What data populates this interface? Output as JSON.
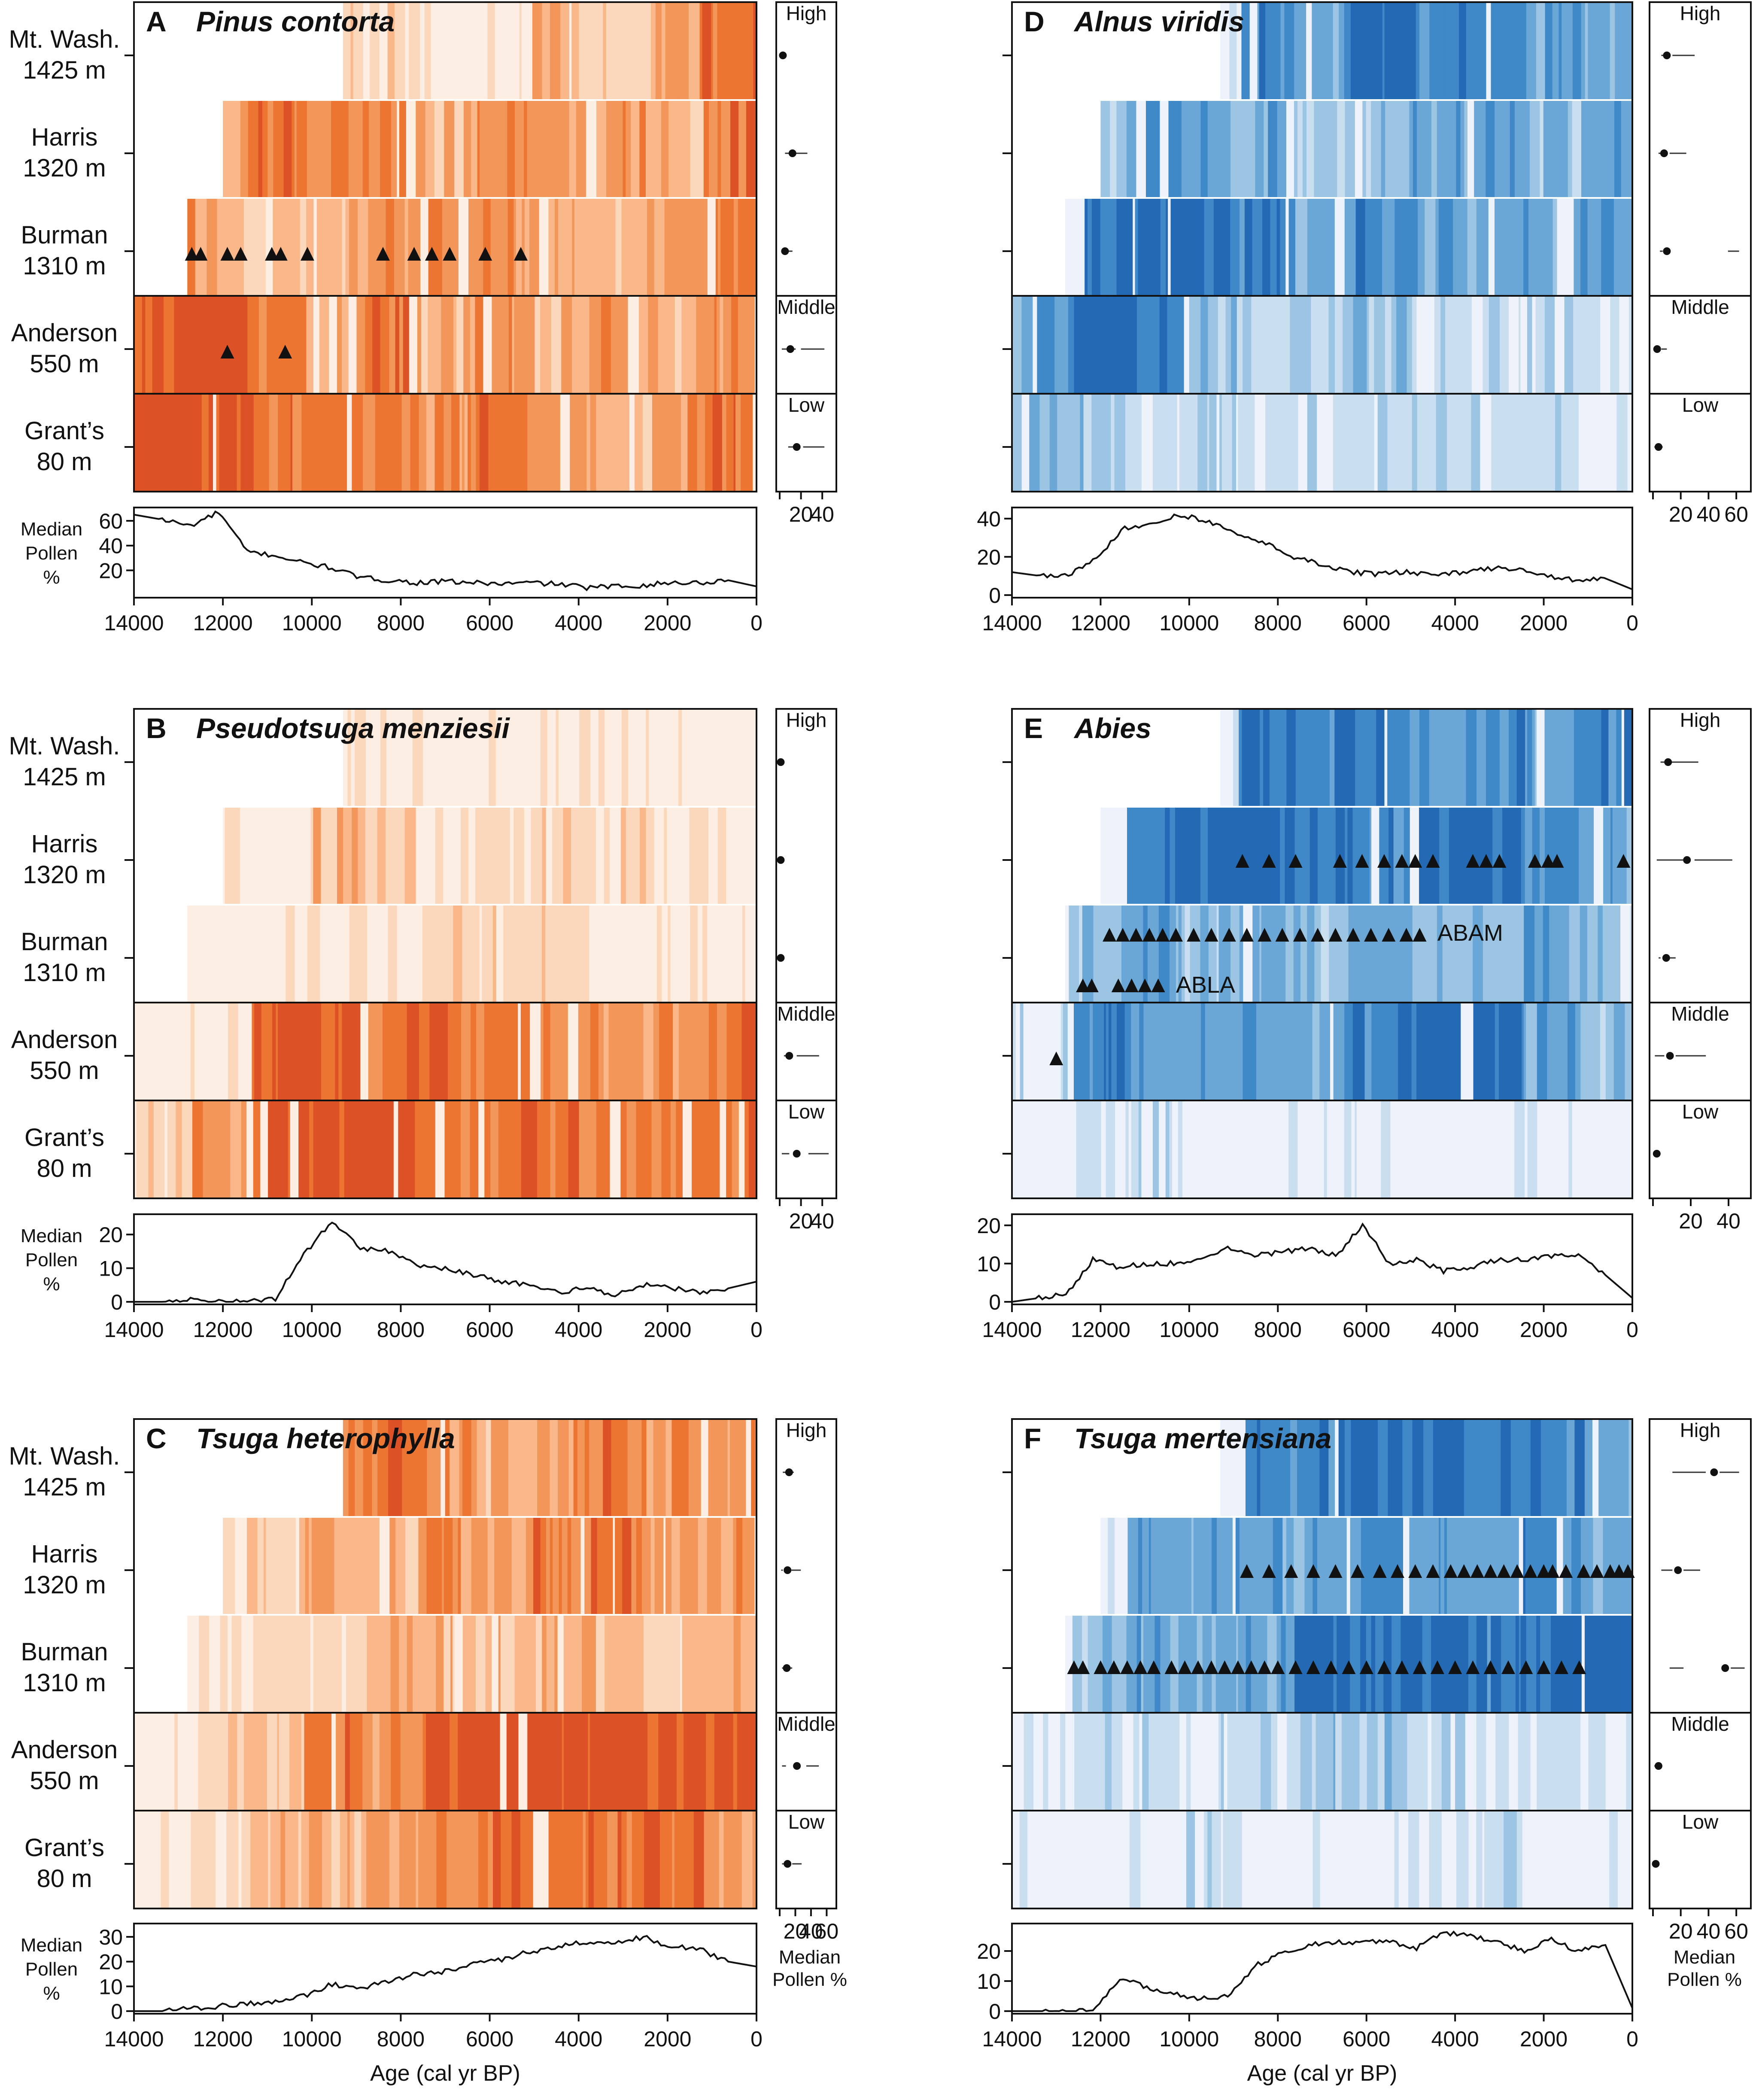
{
  "figure": {
    "site_labels": [
      [
        "Mt. Wash.",
        "1425 m"
      ],
      [
        "Harris",
        "1320 m"
      ],
      [
        "Burman",
        "1310 m"
      ],
      [
        "Anderson",
        "550 m"
      ],
      [
        "Grant’s",
        "80 m"
      ]
    ],
    "elevation_labels": [
      "High",
      "Middle",
      "Low"
    ],
    "median_label": [
      "Median",
      "Pollen",
      "%"
    ],
    "median_label_right": [
      "Median",
      "Pollen %"
    ],
    "xaxis_title": "Age (cal yr BP)",
    "x_ticks": [
      14000,
      12000,
      10000,
      8000,
      6000,
      4000,
      2000,
      0
    ],
    "palettes": {
      "orange": [
        "#fdeee3",
        "#fbd7bb",
        "#f9b78a",
        "#f29659",
        "#ec7631",
        "#dd5126"
      ],
      "blue": [
        "#eef3fb",
        "#c9deee",
        "#9cc5e3",
        "#6ba7d6",
        "#3f89c8",
        "#2369b4"
      ]
    }
  },
  "chart_data": [
    {
      "letter": "A",
      "taxon": "Pinus contorta",
      "type": "heatmap+line",
      "palette": "orange",
      "site_start_ages": [
        9300,
        12000,
        12800,
        14000,
        14000
      ],
      "site_intensity": [
        [
          0,
          0,
          0,
          1,
          1,
          0,
          1,
          2,
          1,
          3,
          4
        ],
        [
          4,
          3,
          4,
          3,
          3,
          2,
          3,
          3,
          3,
          2,
          4
        ],
        [
          4,
          2,
          1,
          2,
          3,
          3,
          3,
          2,
          2,
          3,
          4
        ],
        [
          5,
          5,
          4,
          3,
          4,
          2,
          3,
          2,
          3,
          2,
          3
        ],
        [
          5,
          5,
          4,
          4,
          4,
          3,
          4,
          3,
          2,
          3,
          4
        ]
      ],
      "triangle_ages": [
        [],
        [],
        [
          12700,
          12500,
          11900,
          11600,
          10900,
          10700,
          10100,
          8400,
          7700,
          7300,
          6900,
          6100,
          5300
        ],
        [
          11900,
          10600
        ],
        []
      ],
      "triangle_labels": [],
      "median_series": [
        65,
        61,
        56,
        67,
        35,
        32,
        26,
        22,
        14,
        12,
        10,
        11,
        10,
        9,
        10,
        9,
        6,
        7,
        8,
        10,
        10,
        12,
        7
      ],
      "y_ticks": [
        20,
        40,
        60
      ],
      "ylim": [
        0,
        68
      ],
      "dots": [
        {
          "median": 3,
          "lo": 1,
          "hi": 6,
          "lo2": null,
          "hi2": null
        },
        {
          "median": 12,
          "lo": 5,
          "hi": 26
        },
        {
          "median": 5,
          "lo": 2,
          "hi": 12
        },
        {
          "median": 10,
          "lo": 2,
          "hi": 15,
          "lo2": 20,
          "hi2": 42
        },
        {
          "median": 16,
          "lo": 8,
          "hi": 14,
          "lo2": 22,
          "hi2": 42
        }
      ],
      "dot_ticks": [
        20,
        40
      ],
      "dot_xlim": [
        0,
        50
      ]
    },
    {
      "letter": "B",
      "taxon": "Pseudotsuga menziesii",
      "type": "heatmap+line",
      "palette": "orange",
      "site_start_ages": [
        9300,
        12000,
        12800,
        14000,
        14000
      ],
      "site_intensity": [
        [
          0,
          0,
          0,
          0,
          0,
          0,
          0,
          0,
          0,
          0,
          0
        ],
        [
          0,
          1,
          0,
          2,
          1,
          0,
          1,
          1,
          1,
          0,
          0
        ],
        [
          0,
          0,
          0,
          0,
          0,
          1,
          1,
          1,
          0,
          0,
          0
        ],
        [
          0,
          0,
          5,
          5,
          4,
          4,
          4,
          3,
          3,
          3,
          4
        ],
        [
          1,
          3,
          5,
          5,
          5,
          4,
          4,
          4,
          4,
          4,
          4
        ]
      ],
      "triangle_ages": [
        [],
        [],
        [],
        [],
        []
      ],
      "triangle_labels": [],
      "median_series": [
        0,
        0,
        1,
        0,
        0,
        1,
        14,
        24,
        16,
        15,
        11,
        10,
        8,
        6,
        5,
        3,
        4,
        2,
        5,
        4,
        3,
        4,
        6
      ],
      "y_ticks": [
        0,
        10,
        20
      ],
      "ylim": [
        0,
        25
      ],
      "dots": [
        {
          "median": 1,
          "lo": 0,
          "hi": 2
        },
        {
          "median": 1,
          "lo": 0,
          "hi": 2
        },
        {
          "median": 1,
          "lo": 0,
          "hi": 2
        },
        {
          "median": 9,
          "lo": 4,
          "hi": 6,
          "lo2": 16,
          "hi2": 37
        },
        {
          "median": 16,
          "lo": 2,
          "hi": 9,
          "lo2": 27,
          "hi2": 46
        }
      ],
      "dot_ticks": [
        20,
        40
      ],
      "dot_xlim": [
        0,
        50
      ]
    },
    {
      "letter": "C",
      "taxon": "Tsuga heterophylla",
      "type": "heatmap+line",
      "palette": "orange",
      "site_start_ages": [
        9300,
        12000,
        12800,
        14000,
        14000
      ],
      "site_intensity": [
        [
          0,
          0,
          0,
          3,
          4,
          3,
          2,
          3,
          4,
          3,
          3
        ],
        [
          0,
          1,
          1,
          2,
          2,
          3,
          3,
          4,
          4,
          3,
          3
        ],
        [
          0,
          1,
          1,
          1,
          2,
          2,
          2,
          2,
          2,
          1,
          2
        ],
        [
          0,
          1,
          2,
          4,
          3,
          5,
          5,
          5,
          5,
          5,
          5
        ],
        [
          0,
          1,
          2,
          2,
          3,
          3,
          4,
          4,
          4,
          4,
          3
        ]
      ],
      "triangle_ages": [
        [],
        [],
        [],
        [],
        []
      ],
      "triangle_labels": [],
      "median_series": [
        0,
        0,
        1,
        2,
        3,
        4,
        6,
        11,
        9,
        12,
        15,
        16,
        19,
        21,
        24,
        26,
        28,
        27,
        30,
        26,
        25,
        20,
        18
      ],
      "y_ticks": [
        0,
        10,
        20,
        30
      ],
      "ylim": [
        0,
        34
      ],
      "dots": [
        {
          "median": 12,
          "lo": 4,
          "hi": 18
        },
        {
          "median": 10,
          "lo": 2,
          "hi": 4,
          "lo2": 15,
          "hi2": 27
        },
        {
          "median": 9,
          "lo": 3,
          "hi": 16
        },
        {
          "median": 22,
          "lo": 3,
          "hi": 8,
          "lo2": 34,
          "hi2": 50
        },
        {
          "median": 10,
          "lo": 3,
          "hi": 7,
          "lo2": 16,
          "hi2": 28
        }
      ],
      "dot_ticks": [
        20,
        40,
        60
      ],
      "dot_xlim": [
        0,
        68
      ]
    },
    {
      "letter": "D",
      "taxon": "Alnus viridis",
      "type": "heatmap+line",
      "palette": "blue",
      "site_start_ages": [
        9300,
        12000,
        12800,
        14000,
        14000
      ],
      "site_intensity": [
        [
          0,
          0,
          0,
          1,
          4,
          3,
          5,
          4,
          4,
          3,
          3
        ],
        [
          0,
          2,
          4,
          3,
          3,
          2,
          2,
          3,
          3,
          2,
          3
        ],
        [
          0,
          5,
          5,
          5,
          4,
          3,
          4,
          3,
          3,
          3,
          3
        ],
        [
          3,
          5,
          4,
          2,
          1,
          1,
          2,
          1,
          1,
          1,
          1
        ],
        [
          2,
          2,
          1,
          1,
          1,
          1,
          1,
          1,
          1,
          1,
          0
        ]
      ],
      "triangle_ages": [
        [],
        [],
        [],
        [],
        []
      ],
      "triangle_labels": [],
      "median_series": [
        12,
        10,
        10,
        20,
        35,
        38,
        42,
        38,
        32,
        27,
        20,
        16,
        12,
        11,
        12,
        10,
        12,
        14,
        13,
        10,
        8,
        9,
        3
      ],
      "y_ticks": [
        0,
        20,
        40
      ],
      "ylim": [
        0,
        44
      ],
      "dots": [
        {
          "median": 10,
          "lo": 6,
          "hi": 8,
          "lo2": 14,
          "hi2": 30
        },
        {
          "median": 8,
          "lo": 4,
          "hi": 6,
          "lo2": 12,
          "hi2": 24
        },
        {
          "median": 10,
          "lo": 5,
          "hi": 7,
          "lo2": 54,
          "hi2": 62
        },
        {
          "median": 3,
          "lo": 1,
          "hi": 5,
          "lo2": 6,
          "hi2": 10
        },
        {
          "median": 4,
          "lo": 1,
          "hi": 7
        }
      ],
      "dot_ticks": [
        20,
        40,
        60
      ],
      "dot_xlim": [
        0,
        68
      ]
    },
    {
      "letter": "E",
      "taxon": "Abies",
      "type": "heatmap+line",
      "palette": "blue",
      "site_start_ages": [
        9300,
        12000,
        12800,
        14000,
        14000
      ],
      "site_intensity": [
        [
          0,
          0,
          0,
          0,
          5,
          4,
          4,
          3,
          4,
          3,
          4
        ],
        [
          0,
          0,
          4,
          5,
          5,
          4,
          4,
          5,
          5,
          4,
          3
        ],
        [
          0,
          2,
          3,
          2,
          3,
          2,
          3,
          2,
          2,
          3,
          2
        ],
        [
          1,
          4,
          3,
          3,
          3,
          3,
          4,
          5,
          5,
          3,
          2
        ],
        [
          0,
          1,
          1,
          0,
          0,
          0,
          0,
          0,
          0,
          0,
          0
        ]
      ],
      "triangle_ages": [
        [],
        [
          8800,
          8200,
          7600,
          6600,
          6100,
          5600,
          5200,
          4900,
          4500,
          3600,
          3300,
          3000,
          2200,
          1900,
          1700,
          200
        ],
        [
          11800,
          11500,
          11200,
          10900,
          10600,
          10300,
          9900,
          9500,
          9100,
          8700,
          8300,
          7900,
          7500,
          7100,
          6700,
          6300,
          5900,
          5500,
          5100,
          4800,
          12400,
          12200,
          11600,
          11300,
          11000,
          10700
        ],
        [
          13000
        ],
        []
      ],
      "triangle_labels": [
        {
          "text": "ABAM",
          "site": 2,
          "row": "upper"
        },
        {
          "text": "ABLA",
          "site": 2,
          "row": "lower"
        }
      ],
      "median_series": [
        0,
        1,
        2,
        11,
        9,
        10,
        10,
        11,
        14,
        12,
        13,
        14,
        12,
        20,
        10,
        11,
        8,
        9,
        11,
        11,
        12,
        12,
        7,
        1
      ],
      "y_ticks": [
        0,
        10,
        20
      ],
      "ylim": [
        0,
        22
      ],
      "dots": [
        {
          "median": 8,
          "lo": 4,
          "hi": 6,
          "lo2": 10,
          "hi2": 24
        },
        {
          "median": 18,
          "lo": 2,
          "hi": 16,
          "lo2": 22,
          "hi2": 42
        },
        {
          "median": 7,
          "lo": 3,
          "hi": 4,
          "lo2": 9,
          "hi2": 12
        },
        {
          "median": 9,
          "lo": 1,
          "hi": 6,
          "lo2": 12,
          "hi2": 28
        },
        {
          "median": 2,
          "lo": 0,
          "hi": 1,
          "lo2": 3,
          "hi2": 4
        }
      ],
      "dot_ticks": [
        20,
        40
      ],
      "dot_xlim": [
        0,
        50
      ]
    },
    {
      "letter": "F",
      "taxon": "Tsuga mertensiana",
      "type": "heatmap+line",
      "palette": "blue",
      "site_start_ages": [
        9300,
        12000,
        12800,
        14000,
        14000
      ],
      "site_intensity": [
        [
          0,
          0,
          0,
          0,
          4,
          4,
          5,
          5,
          4,
          4,
          3
        ],
        [
          0,
          0,
          3,
          3,
          3,
          3,
          4,
          3,
          3,
          4,
          3
        ],
        [
          0,
          2,
          3,
          3,
          3,
          5,
          5,
          5,
          4,
          5,
          5
        ],
        [
          0,
          1,
          1,
          1,
          1,
          2,
          2,
          1,
          1,
          1,
          1
        ],
        [
          0,
          0,
          0,
          1,
          0,
          0,
          0,
          0,
          1,
          0,
          0
        ]
      ],
      "triangle_ages": [
        [],
        [
          8700,
          8200,
          7700,
          7200,
          6700,
          6200,
          5700,
          5300,
          4900,
          4500,
          4100,
          3800,
          3500,
          3200,
          2900,
          2600,
          2300,
          2000,
          1800,
          1500,
          1100,
          800,
          500,
          300,
          100
        ],
        [
          12600,
          12400,
          12000,
          11700,
          11400,
          11100,
          10800,
          10400,
          10100,
          9800,
          9500,
          9200,
          8900,
          8600,
          8300,
          8000,
          7600,
          7200,
          6800,
          6400,
          6000,
          5600,
          5200,
          4800,
          4400,
          4000,
          3600,
          3200,
          2800,
          2400,
          2000,
          1600,
          1200
        ],
        [],
        []
      ],
      "triangle_labels": [],
      "median_series": [
        0,
        0,
        0,
        0,
        11,
        8,
        6,
        4,
        5,
        15,
        19,
        22,
        23,
        23,
        23,
        21,
        26,
        25,
        23,
        20,
        24,
        20,
        22,
        1
      ],
      "y_ticks": [
        0,
        10,
        20
      ],
      "ylim": [
        0,
        28
      ],
      "dots": [
        {
          "median": 44,
          "lo": 14,
          "hi": 38,
          "lo2": 48,
          "hi2": 62
        },
        {
          "median": 18,
          "lo": 6,
          "hi": 14,
          "lo2": 22,
          "hi2": 34
        },
        {
          "median": 52,
          "lo": 12,
          "hi": 22,
          "lo2": 56,
          "hi2": 66
        },
        {
          "median": 4,
          "lo": 1,
          "hi": 3
        },
        {
          "median": 2,
          "lo": 0,
          "hi": 1
        }
      ],
      "dot_ticks": [
        20,
        40,
        60
      ],
      "dot_xlim": [
        0,
        68
      ]
    }
  ]
}
